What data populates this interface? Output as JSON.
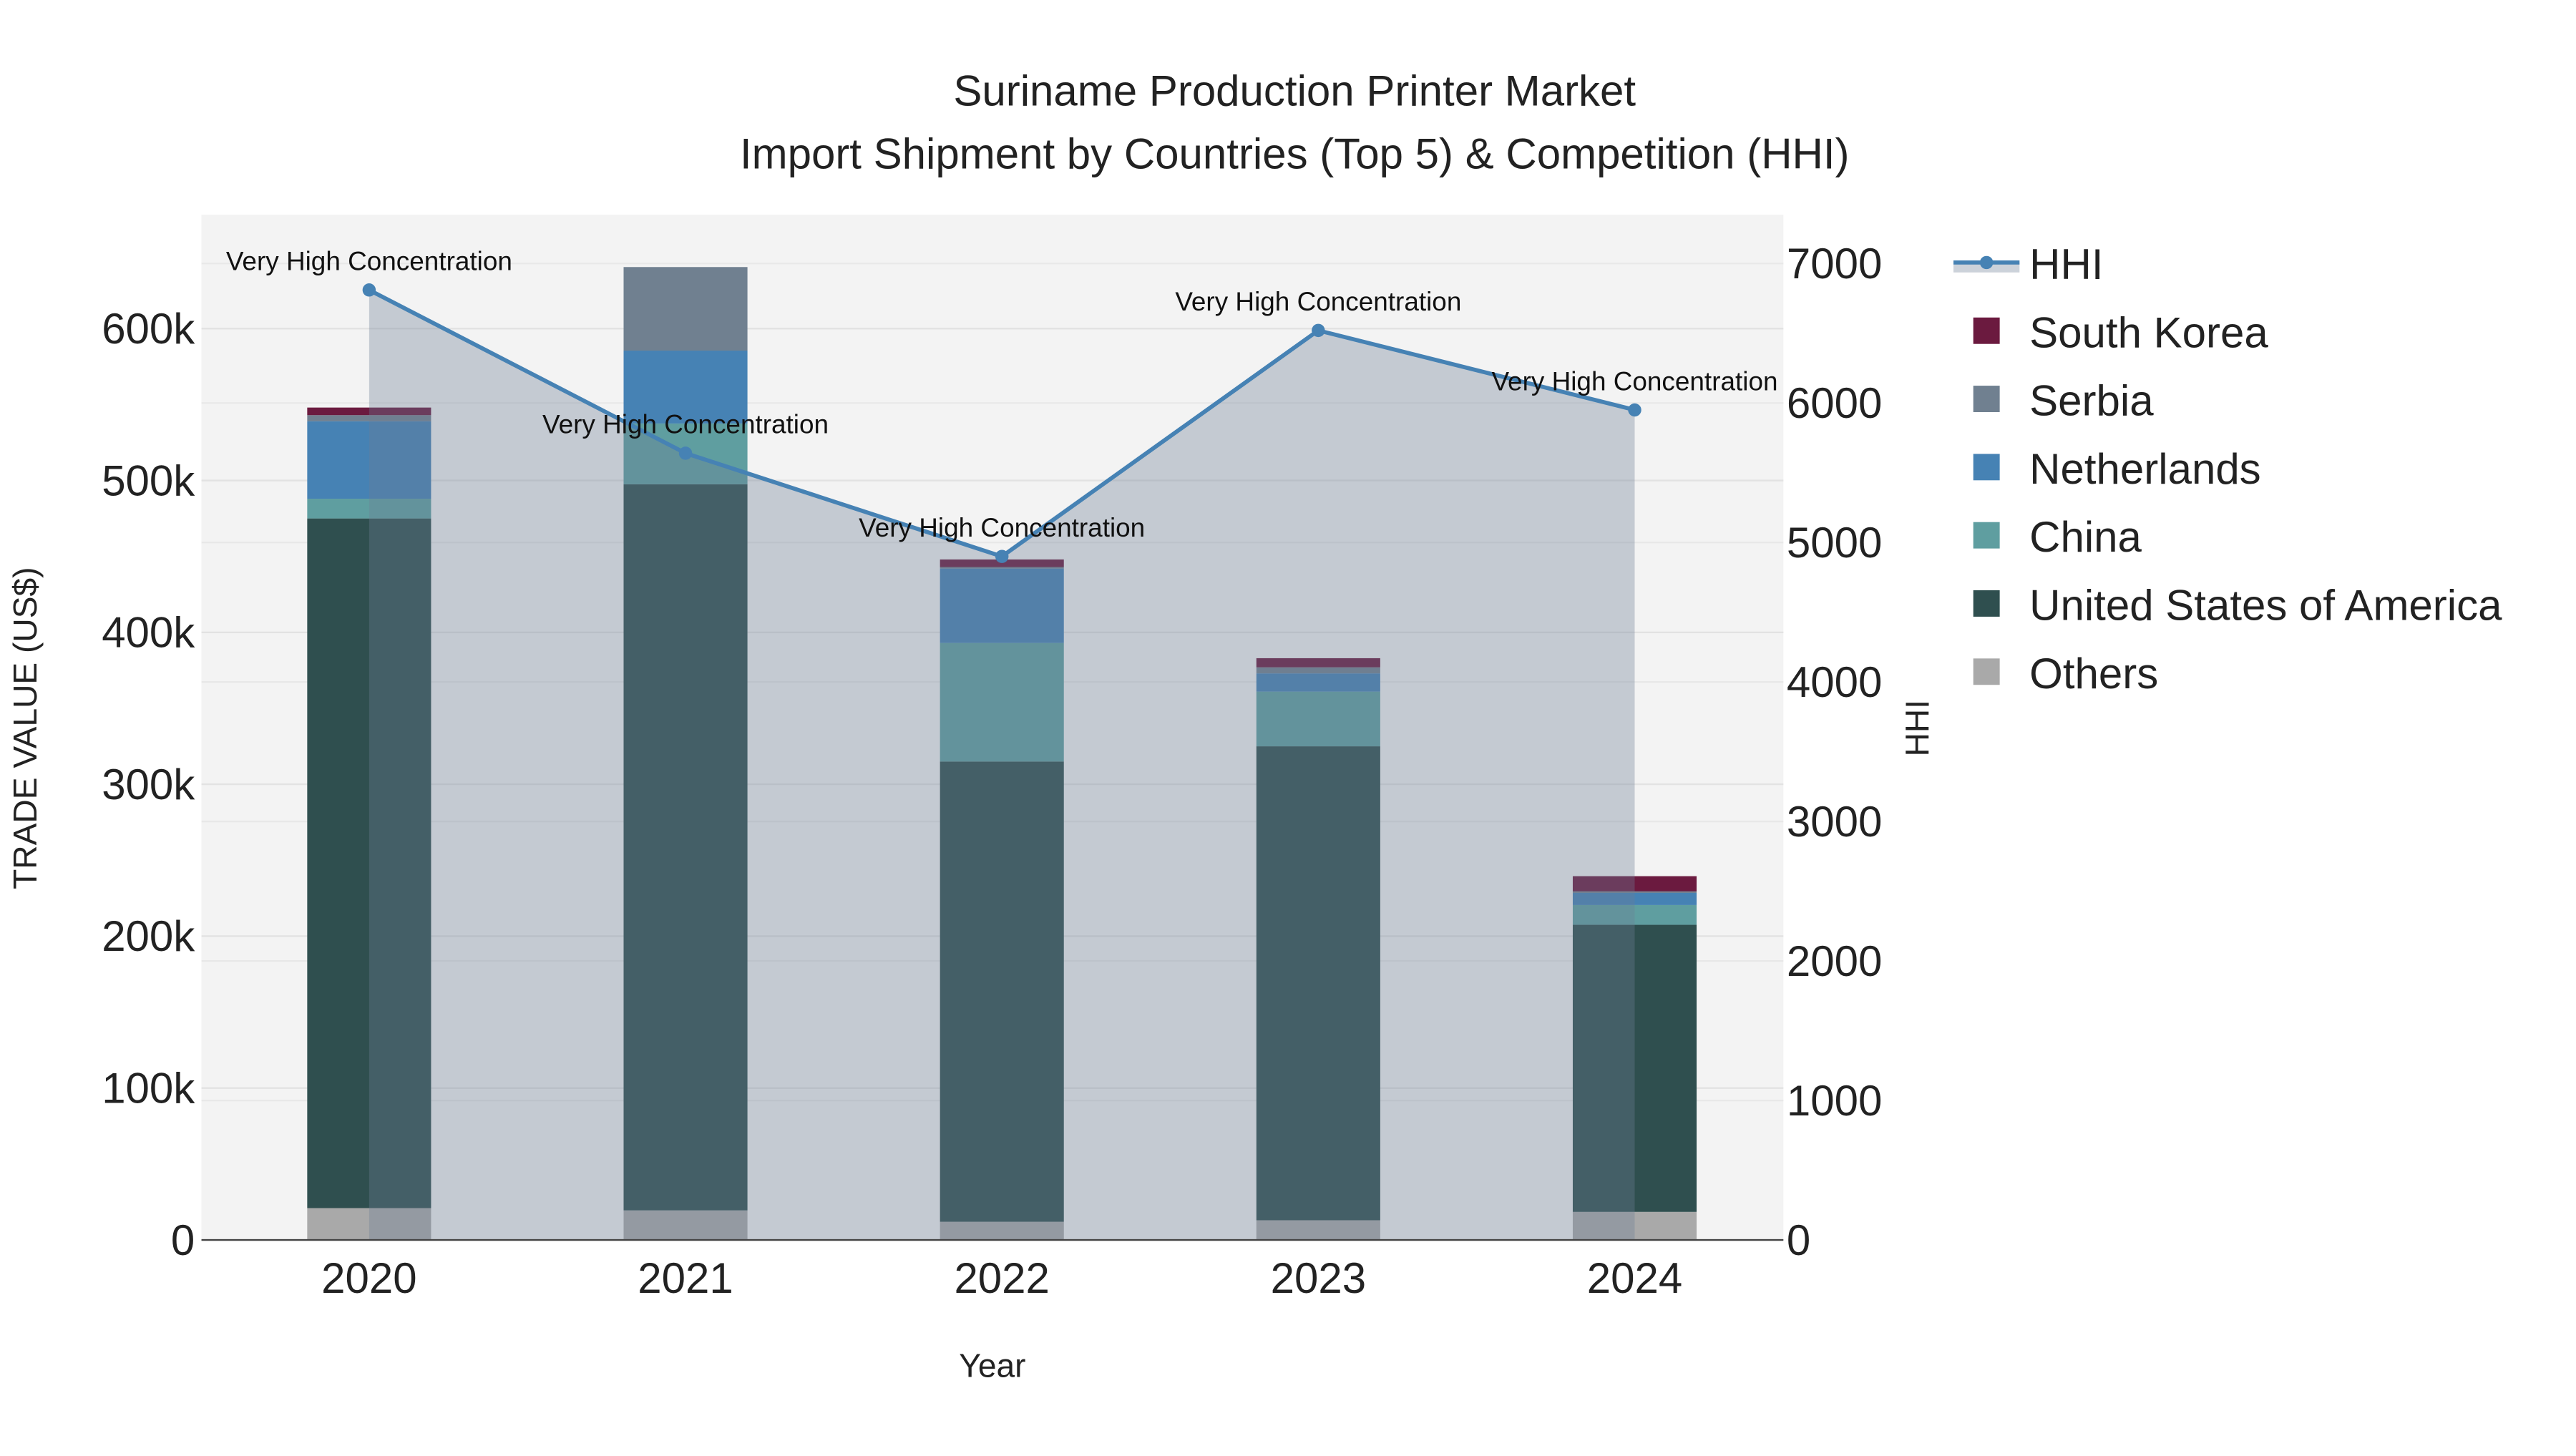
{
  "chart_data": {
    "type": "bar",
    "title_line1": "Suriname Production Printer Market",
    "title_line2": "Import Shipment by Countries (Top 5) & Competition (HHI)",
    "xlabel": "Year",
    "ylabel": "TRADE VALUE (US$)",
    "y2label": "HHI",
    "categories": [
      "2020",
      "2021",
      "2022",
      "2023",
      "2024"
    ],
    "ylim": [
      0,
      675000
    ],
    "y2lim": [
      0,
      7350
    ],
    "yticks": [
      0,
      100000,
      200000,
      300000,
      400000,
      500000,
      600000
    ],
    "ytick_labels": [
      "0",
      "100k",
      "200k",
      "300k",
      "400k",
      "500k",
      "600k"
    ],
    "y2ticks": [
      0,
      1000,
      2000,
      3000,
      4000,
      5000,
      6000,
      7000
    ],
    "y2tick_labels": [
      "0",
      "1000",
      "2000",
      "3000",
      "4000",
      "5000",
      "6000",
      "7000"
    ],
    "stacked": true,
    "series": [
      {
        "name": "Others",
        "color": "#a9a9a9",
        "values": [
          21000,
          19500,
          12000,
          13000,
          18500
        ]
      },
      {
        "name": "United States of America",
        "color": "#2f4f4f",
        "values": [
          454000,
          478000,
          303000,
          312000,
          189000
        ]
      },
      {
        "name": "China",
        "color": "#5f9ea0",
        "values": [
          13000,
          40000,
          78000,
          36000,
          13000
        ]
      },
      {
        "name": "Netherlands",
        "color": "#4682b4",
        "values": [
          51000,
          48000,
          49000,
          12000,
          8000
        ]
      },
      {
        "name": "Serbia",
        "color": "#708090",
        "values": [
          4000,
          55000,
          1000,
          4000,
          1000
        ]
      },
      {
        "name": "South Korea",
        "color": "#6b1a3f",
        "values": [
          5000,
          0,
          5000,
          6000,
          10000
        ]
      }
    ],
    "hhi": {
      "name": "HHI",
      "color": "#4682b4",
      "values": [
        6810,
        5640,
        4900,
        6520,
        5950
      ],
      "annotations": [
        "Very High Concentration",
        "Very High Concentration",
        "Very High Concentration",
        "Very High Concentration",
        "Very High Concentration"
      ]
    },
    "legend_order": [
      "HHI",
      "South Korea",
      "Serbia",
      "Netherlands",
      "China",
      "United States of America",
      "Others"
    ],
    "legend_placement": "right",
    "grid": true
  }
}
